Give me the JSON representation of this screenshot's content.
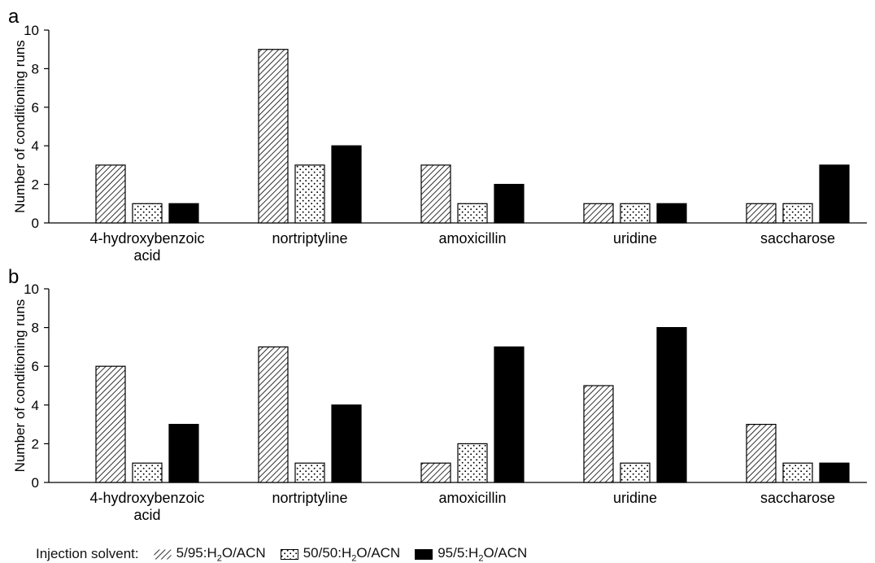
{
  "legend": {
    "title": "Injection solvent:",
    "items": [
      {
        "pattern": "hatch",
        "parts": [
          "5/95:H",
          "2",
          "O/ACN"
        ]
      },
      {
        "pattern": "dots",
        "parts": [
          "50/50:H",
          "2",
          "O/ACN"
        ]
      },
      {
        "pattern": "solid",
        "parts": [
          "95/5:H",
          "2",
          "O/ACN"
        ]
      }
    ]
  },
  "colors": {
    "axis": "#000000",
    "fill_solid": "#000000",
    "pattern_bg": "#ffffff"
  },
  "chart_data": [
    {
      "type": "bar",
      "panel_label": "a",
      "categories": [
        "4-hydroxybenzoic acid",
        "nortriptyline",
        "amoxicillin",
        "uridine",
        "saccharose"
      ],
      "category_lines": [
        [
          "4-hydroxybenzoic",
          "acid"
        ],
        [
          "nortriptyline"
        ],
        [
          "amoxicillin"
        ],
        [
          "uridine"
        ],
        [
          "saccharose"
        ]
      ],
      "series": [
        {
          "name": "5/95:H2O/ACN",
          "pattern": "hatch",
          "values": [
            3,
            9,
            3,
            1,
            1
          ]
        },
        {
          "name": "50/50:H2O/ACN",
          "pattern": "dots",
          "values": [
            1,
            3,
            1,
            1,
            1
          ]
        },
        {
          "name": "95/5:H2O/ACN",
          "pattern": "solid",
          "values": [
            1,
            4,
            2,
            1,
            3
          ]
        }
      ],
      "ylabel": "Number of conditioning runs",
      "ylim": [
        0,
        10
      ],
      "yticks": [
        0,
        2,
        4,
        6,
        8,
        10
      ],
      "grid": false
    },
    {
      "type": "bar",
      "panel_label": "b",
      "categories": [
        "4-hydroxybenzoic acid",
        "nortriptyline",
        "amoxicillin",
        "uridine",
        "saccharose"
      ],
      "category_lines": [
        [
          "4-hydroxybenzoic",
          "acid"
        ],
        [
          "nortriptyline"
        ],
        [
          "amoxicillin"
        ],
        [
          "uridine"
        ],
        [
          "saccharose"
        ]
      ],
      "series": [
        {
          "name": "5/95:H2O/ACN",
          "pattern": "hatch",
          "values": [
            6,
            7,
            1,
            5,
            3
          ]
        },
        {
          "name": "50/50:H2O/ACN",
          "pattern": "dots",
          "values": [
            1,
            1,
            2,
            1,
            1
          ]
        },
        {
          "name": "95/5:H2O/ACN",
          "pattern": "solid",
          "values": [
            3,
            4,
            7,
            8,
            1
          ]
        }
      ],
      "ylabel": "Number of conditioning runs",
      "ylim": [
        0,
        10
      ],
      "yticks": [
        0,
        2,
        4,
        6,
        8,
        10
      ],
      "grid": false
    }
  ]
}
